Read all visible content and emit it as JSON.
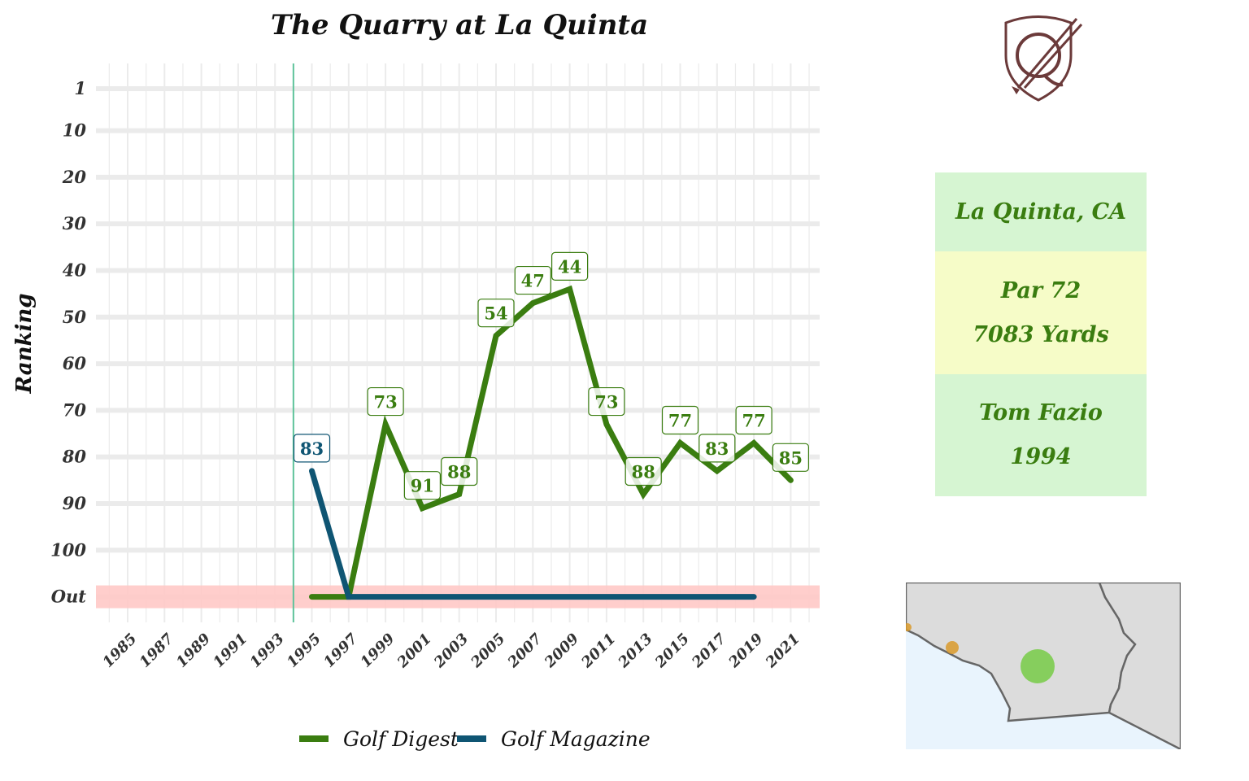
{
  "title": "The Quarry at La Quinta",
  "colors": {
    "golf_digest": "#3a7d10",
    "golf_magazine": "#0f5573",
    "out_band": "#ffc9c6",
    "open_year_line": "#5ec39a",
    "grid": "#ebebeb"
  },
  "info": {
    "location": "La Quinta, CA",
    "par": "Par 72",
    "yardage": "7083 Yards",
    "designer": "Tom Fazio",
    "year": "1994"
  },
  "chart_data": {
    "type": "line",
    "title": "The Quarry at La Quinta",
    "xlabel": "",
    "ylabel": "Ranking",
    "x_ticks": [
      1985,
      1987,
      1989,
      1991,
      1993,
      1995,
      1997,
      1999,
      2001,
      2003,
      2005,
      2007,
      2009,
      2011,
      2013,
      2015,
      2017,
      2019,
      2021
    ],
    "y_ticks": [
      "1",
      "10",
      "20",
      "30",
      "40",
      "50",
      "60",
      "70",
      "80",
      "90",
      "100",
      "Out"
    ],
    "y_tick_values": [
      1,
      10,
      20,
      30,
      40,
      50,
      60,
      70,
      80,
      90,
      100,
      110
    ],
    "ylim": [
      110,
      1
    ],
    "y_reversed": true,
    "xlim": [
      1984,
      2023
    ],
    "opening_year": 1994,
    "out_value": 110,
    "grid": true,
    "legend_position": "bottom",
    "series": [
      {
        "name": "Golf Digest",
        "x": [
          1995,
          1997,
          1999,
          2001,
          2003,
          2005,
          2007,
          2009,
          2011,
          2013,
          2015,
          2017,
          2019,
          2021
        ],
        "y": [
          "Out",
          "Out",
          73,
          91,
          88,
          54,
          47,
          44,
          73,
          88,
          77,
          83,
          77,
          85
        ]
      },
      {
        "name": "Golf Magazine",
        "x": [
          1995,
          1997,
          1999,
          2001,
          2003,
          2005,
          2007,
          2009,
          2011,
          2013,
          2015,
          2017,
          2019
        ],
        "y": [
          83,
          "Out",
          "Out",
          "Out",
          "Out",
          "Out",
          "Out",
          "Out",
          "Out",
          "Out",
          "Out",
          "Out",
          "Out"
        ]
      }
    ]
  }
}
